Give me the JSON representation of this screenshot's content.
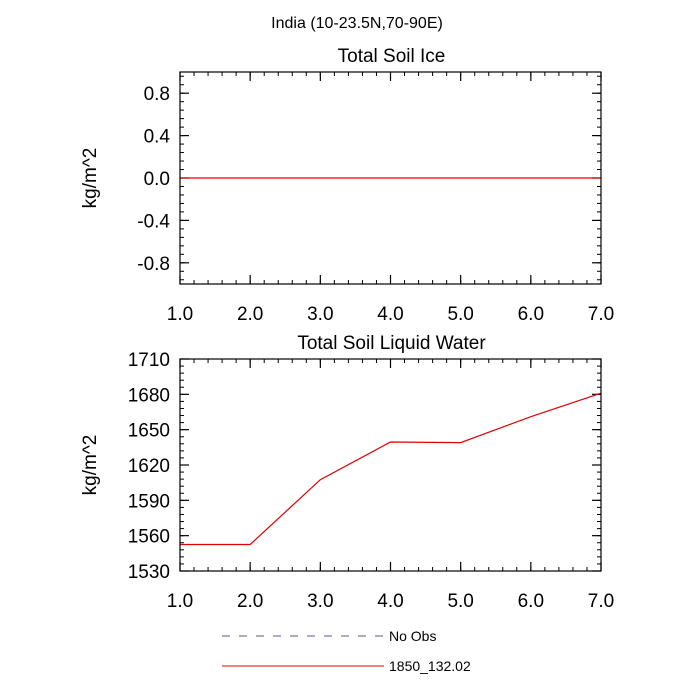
{
  "figure_title": "India (10-23.5N,70-90E)",
  "legend": [
    {
      "label": "No Obs",
      "color": "#5a5a8f",
      "style": "dashed"
    },
    {
      "label": "1850_132.02",
      "color": "#e00000",
      "style": "solid"
    }
  ],
  "chart_data": [
    {
      "type": "line",
      "title": "Total Soil Ice",
      "xlabel": "",
      "ylabel": "kg/m^2",
      "xlim": [
        1,
        7
      ],
      "ylim": [
        -1.0,
        1.0
      ],
      "x_ticks": [
        1,
        2,
        3,
        4,
        5,
        6,
        7
      ],
      "x_tick_labels": [
        "1.0",
        "2.0",
        "3.0",
        "4.0",
        "5.0",
        "6.0",
        "7.0"
      ],
      "y_ticks": [
        -0.8,
        -0.4,
        0.0,
        0.4,
        0.8
      ],
      "y_tick_labels": [
        "-0.8",
        "-0.4",
        "0.0",
        "0.4",
        "0.8"
      ],
      "grid": false,
      "series": [
        {
          "name": "1850_132.02",
          "color": "#e00000",
          "x": [
            1,
            2,
            3,
            4,
            5,
            6,
            7
          ],
          "values": [
            0,
            0,
            0,
            0,
            0,
            0,
            0
          ]
        }
      ]
    },
    {
      "type": "line",
      "title": "Total Soil Liquid Water",
      "xlabel": "",
      "ylabel": "kg/m^2",
      "xlim": [
        1,
        7
      ],
      "ylim": [
        1530,
        1710
      ],
      "x_ticks": [
        1,
        2,
        3,
        4,
        5,
        6,
        7
      ],
      "x_tick_labels": [
        "1.0",
        "2.0",
        "3.0",
        "4.0",
        "5.0",
        "6.0",
        "7.0"
      ],
      "y_ticks": [
        1530,
        1560,
        1590,
        1620,
        1650,
        1680,
        1710
      ],
      "y_tick_labels": [
        "1530",
        "1560",
        "1590",
        "1620",
        "1650",
        "1680",
        "1710"
      ],
      "grid": false,
      "series": [
        {
          "name": "1850_132.02",
          "color": "#e00000",
          "x": [
            1,
            2,
            3,
            4,
            5,
            6,
            7
          ],
          "values": [
            1552.5,
            1552.5,
            1607.5,
            1639.5,
            1639,
            1661,
            1681
          ]
        }
      ]
    }
  ]
}
